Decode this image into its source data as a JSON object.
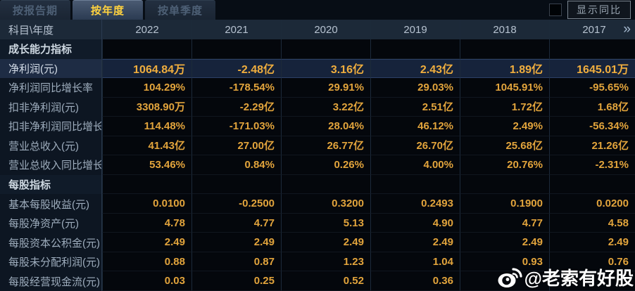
{
  "tabs": [
    {
      "label": "按报告期",
      "active": false
    },
    {
      "label": "按年度",
      "active": true
    },
    {
      "label": "按单季度",
      "active": false
    }
  ],
  "controls": {
    "show_yoy_label": "显示同比",
    "checkbox_checked": false
  },
  "table": {
    "corner_header": "科目\\年度",
    "year_columns": [
      "2022",
      "2021",
      "2020",
      "2019",
      "2018",
      "2017"
    ],
    "more_icon": "»",
    "rows": [
      {
        "type": "section",
        "label": "成长能力指标"
      },
      {
        "type": "data",
        "highlight": true,
        "label": "净利润(元)",
        "values": [
          "1064.84万",
          "-2.48亿",
          "3.16亿",
          "2.43亿",
          "1.89亿",
          "1645.01万"
        ]
      },
      {
        "type": "data",
        "highlight": false,
        "label": "净利润同比增长率",
        "values": [
          "104.29%",
          "-178.54%",
          "29.91%",
          "29.03%",
          "1045.91%",
          "-95.65%"
        ]
      },
      {
        "type": "data",
        "highlight": false,
        "label": "扣非净利润(元)",
        "values": [
          "3308.90万",
          "-2.29亿",
          "3.22亿",
          "2.51亿",
          "1.72亿",
          "1.68亿"
        ]
      },
      {
        "type": "data",
        "highlight": false,
        "label": "扣非净利润同比增长率",
        "values": [
          "114.48%",
          "-171.03%",
          "28.04%",
          "46.12%",
          "2.49%",
          "-56.34%"
        ]
      },
      {
        "type": "data",
        "highlight": false,
        "label": "营业总收入(元)",
        "values": [
          "41.43亿",
          "27.00亿",
          "26.77亿",
          "26.70亿",
          "25.68亿",
          "21.26亿"
        ]
      },
      {
        "type": "data",
        "highlight": false,
        "label": "营业总收入同比增长率",
        "values": [
          "53.46%",
          "0.84%",
          "0.26%",
          "4.00%",
          "20.76%",
          "-2.31%"
        ]
      },
      {
        "type": "section",
        "label": "每股指标"
      },
      {
        "type": "data",
        "highlight": false,
        "label": "基本每股收益(元)",
        "values": [
          "0.0100",
          "-0.2500",
          "0.3200",
          "0.2493",
          "0.1900",
          "0.0200"
        ]
      },
      {
        "type": "data",
        "highlight": false,
        "label": "每股净资产(元)",
        "values": [
          "4.78",
          "4.77",
          "5.13",
          "4.90",
          "4.77",
          "4.58"
        ]
      },
      {
        "type": "data",
        "highlight": false,
        "label": "每股资本公积金(元)",
        "values": [
          "2.49",
          "2.49",
          "2.49",
          "2.49",
          "2.49",
          "2.49"
        ]
      },
      {
        "type": "data",
        "highlight": false,
        "label": "每股未分配利润(元)",
        "values": [
          "0.88",
          "0.87",
          "1.23",
          "1.04",
          "0.93",
          "0.76"
        ]
      },
      {
        "type": "data",
        "highlight": false,
        "label": "每股经营现金流(元)",
        "values": [
          "0.03",
          "0.25",
          "0.52",
          "0.36",
          "",
          ""
        ]
      }
    ]
  },
  "watermark": {
    "text": "@老索有好股"
  },
  "colors": {
    "value_gold": "#e2a43c",
    "highlight_gold": "#f0ae3e",
    "tab_active_text": "#ffd23f",
    "highlight_row_bg": "#16233b",
    "header_row_bg": "#1c2938"
  }
}
